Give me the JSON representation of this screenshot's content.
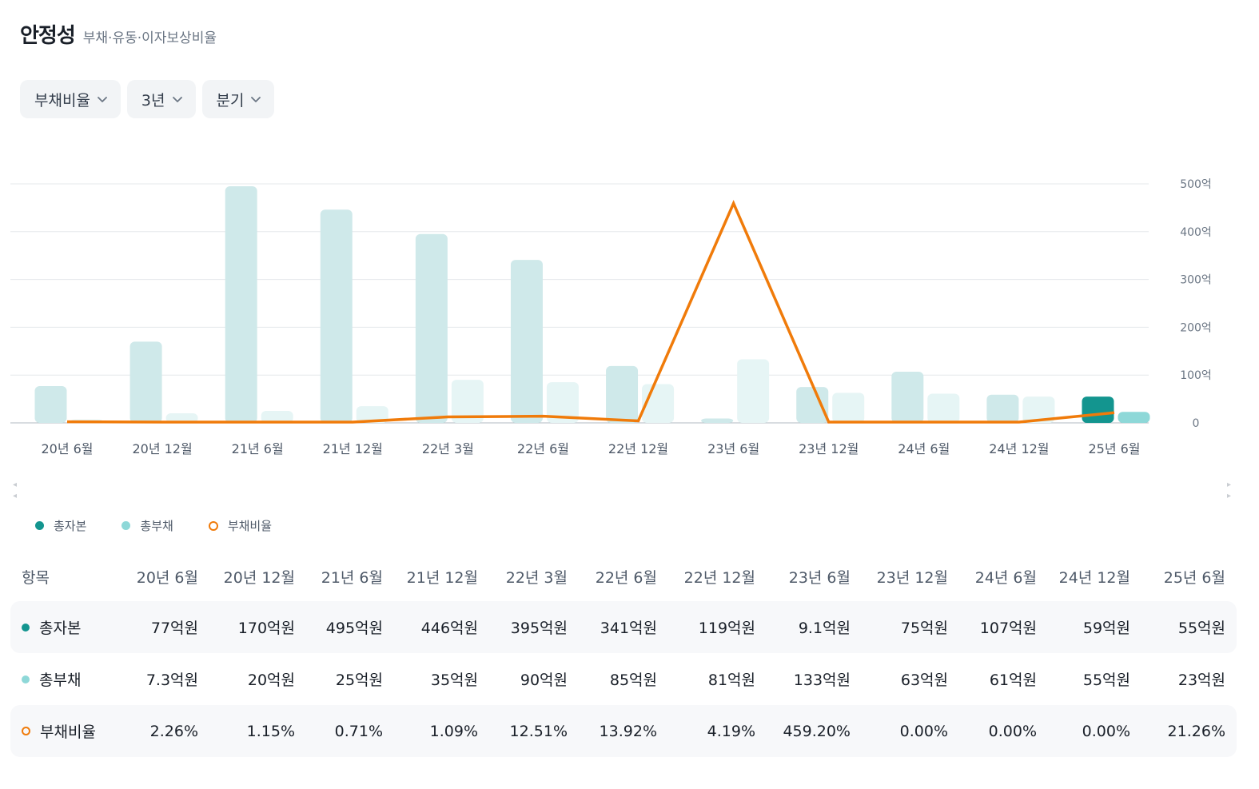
{
  "header": {
    "title": "안정성",
    "subtitle": "부채·유동·이자보상비율"
  },
  "filters": [
    {
      "label": "부채비율",
      "icon": "chevron-down-icon"
    },
    {
      "label": "3년",
      "icon": "chevron-down-icon"
    },
    {
      "label": "분기",
      "icon": "chevron-down-icon"
    }
  ],
  "colors": {
    "capital": "#13958f",
    "capital_faded": "#cfe9ea",
    "debt": "#8ed8d8",
    "debt_faded": "#e6f5f5",
    "ratio": "#f07b0a",
    "grid": "#e5e8eb"
  },
  "chart_data": {
    "type": "bar+line",
    "categories": [
      "20년 6월",
      "20년 12월",
      "21년 6월",
      "21년 12월",
      "22년 3월",
      "22년 6월",
      "22년 12월",
      "23년 6월",
      "23년 12월",
      "24년 6월",
      "24년 12월",
      "25년 6월"
    ],
    "y_ticks": [
      "500억",
      "400억",
      "300억",
      "200억",
      "100억",
      "0"
    ],
    "ylim": [
      0,
      500
    ],
    "ratio_ylim": [
      0,
      500
    ],
    "highlight_index": 11,
    "series": [
      {
        "name": "총자본",
        "type": "bar",
        "values": [
          77,
          170,
          495,
          446,
          395,
          341,
          119,
          9.1,
          75,
          107,
          59,
          55
        ]
      },
      {
        "name": "총부채",
        "type": "bar",
        "values": [
          7.3,
          20,
          25,
          35,
          90,
          85,
          81,
          133,
          63,
          61,
          55,
          23
        ]
      },
      {
        "name": "부채비율",
        "type": "line",
        "values": [
          2.26,
          1.15,
          0.71,
          1.09,
          12.51,
          13.92,
          4.19,
          459.2,
          0.0,
          0.0,
          0.0,
          21.26
        ]
      }
    ]
  },
  "legend": [
    {
      "label": "총자본",
      "marker": "dot",
      "color": "#13958f"
    },
    {
      "label": "총부채",
      "marker": "dot",
      "color": "#8ed8d8"
    },
    {
      "label": "부채비율",
      "marker": "ring",
      "color": "#f07b0a"
    }
  ],
  "table": {
    "head_label": "항목",
    "columns": [
      "20년 6월",
      "20년 12월",
      "21년 6월",
      "21년 12월",
      "22년 3월",
      "22년 6월",
      "22년 12월",
      "23년 6월",
      "23년 12월",
      "24년 6월",
      "24년 12월",
      "25년 6월"
    ],
    "rows": [
      {
        "label": "총자본",
        "values": [
          "77억원",
          "170억원",
          "495억원",
          "446억원",
          "395억원",
          "341억원",
          "119억원",
          "9.1억원",
          "75억원",
          "107억원",
          "59억원",
          "55억원"
        ]
      },
      {
        "label": "총부채",
        "values": [
          "7.3억원",
          "20억원",
          "25억원",
          "35억원",
          "90억원",
          "85억원",
          "81억원",
          "133억원",
          "63억원",
          "61억원",
          "55억원",
          "23억원"
        ]
      },
      {
        "label": "부채비율",
        "values": [
          "2.26%",
          "1.15%",
          "0.71%",
          "1.09%",
          "12.51%",
          "13.92%",
          "4.19%",
          "459.20%",
          "0.00%",
          "0.00%",
          "0.00%",
          "21.26%"
        ]
      }
    ]
  }
}
